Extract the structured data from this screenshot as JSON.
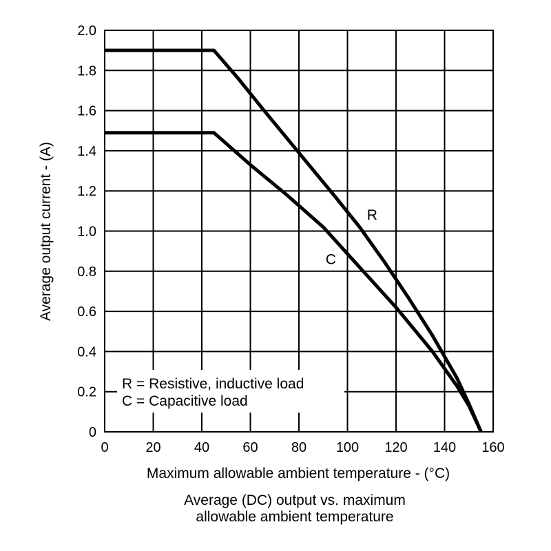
{
  "chart_data": {
    "type": "line",
    "title": "",
    "caption": [
      "Average (DC) output vs. maximum",
      "allowable ambient temperature"
    ],
    "xlabel": "Maximum allowable ambient temperature - (°C)",
    "ylabel": "Average output current - (A)",
    "xlim": [
      0,
      160
    ],
    "ylim": [
      0,
      2.0
    ],
    "x_ticks": [
      0,
      20,
      40,
      60,
      80,
      100,
      120,
      140,
      160
    ],
    "x_tick_labels": [
      "0",
      "20",
      "40",
      "60",
      "80",
      "100",
      "120",
      "140",
      "160"
    ],
    "y_ticks": [
      0,
      0.2,
      0.4,
      0.6,
      0.8,
      1.0,
      1.2,
      1.4,
      1.6,
      1.8,
      2.0
    ],
    "y_tick_labels": [
      "0",
      "0.2",
      "0.4",
      "0.6",
      "0.8",
      "1.0",
      "1.2",
      "1.4",
      "1.6",
      "1.8",
      "2.0"
    ],
    "grid": true,
    "series": [
      {
        "name": "R",
        "description": "Resistive, inductive load",
        "x": [
          0,
          45,
          55,
          65,
          80,
          95,
          105,
          115,
          125,
          135,
          145,
          150,
          155
        ],
        "y": [
          1.9,
          1.9,
          1.76,
          1.61,
          1.39,
          1.17,
          1.02,
          0.85,
          0.67,
          0.48,
          0.27,
          0.14,
          0
        ],
        "label_at": [
          108,
          1.08
        ]
      },
      {
        "name": "C",
        "description": "Capacitive load",
        "x": [
          0,
          45,
          60,
          75,
          90,
          105,
          120,
          135,
          145,
          150,
          155
        ],
        "y": [
          1.49,
          1.49,
          1.33,
          1.18,
          1.02,
          0.82,
          0.62,
          0.4,
          0.23,
          0.13,
          0
        ],
        "label_at": [
          91,
          0.86
        ]
      }
    ],
    "legend": {
      "placement": "bottom-left",
      "entries": [
        "R = Resistive, inductive load",
        "C = Capacitive load"
      ]
    },
    "line_color": "#000000",
    "grid_color": "#000000",
    "background_color": "#ffffff"
  }
}
